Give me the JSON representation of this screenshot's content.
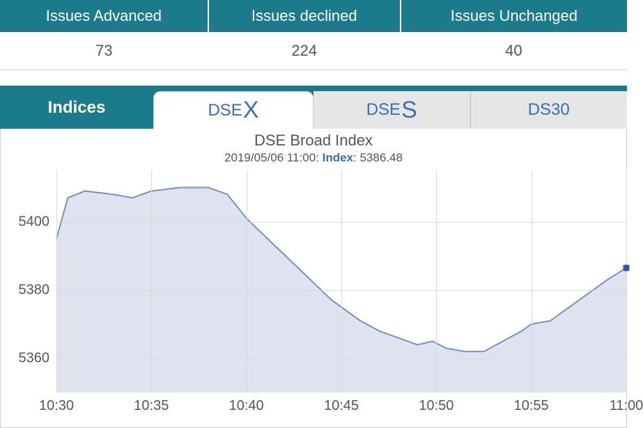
{
  "issues_table": {
    "headers": [
      "Issues Advanced",
      "Issues declined",
      "Issues Unchanged"
    ],
    "values": [
      73,
      224,
      40
    ],
    "header_bg": "#1b7b8a",
    "header_color": "#ffffff",
    "value_color": "#555555",
    "border_color": "#d6d6d6"
  },
  "tabs": {
    "bar_bg": "#1b7b8a",
    "indices_label": "Indices",
    "items": [
      {
        "prefix": "DSE",
        "suffix": "X",
        "active": true
      },
      {
        "prefix": "DSE",
        "suffix": "S",
        "active": false
      },
      {
        "prefix": "DS30",
        "suffix": "",
        "active": false
      }
    ],
    "active_color": "#3a6fb7",
    "inactive_bg": "#e6e6e6"
  },
  "chart": {
    "type": "area",
    "title": "DSE Broad Index",
    "sub_datetime": "2019/05/06 11:00:",
    "sub_index_label": "Index",
    "sub_index_value": "5386.48",
    "title_color": "#555555",
    "title_fontsize": 22,
    "sub_fontsize": 17,
    "line_color": "#7a90b8",
    "fill_color": "#d8deec",
    "fill_opacity": 0.85,
    "grid_color": "#d9d9d9",
    "dot_color": "#2a5aa0",
    "background_color": "#ffffff",
    "line_width": 2,
    "ylim": [
      5350,
      5415
    ],
    "yticks": [
      5360,
      5380,
      5400
    ],
    "xlim_minutes": [
      630,
      660
    ],
    "xticks": [
      {
        "m": 630,
        "label": "10:30"
      },
      {
        "m": 635,
        "label": "10:35"
      },
      {
        "m": 640,
        "label": "10:40"
      },
      {
        "m": 645,
        "label": "10:45"
      },
      {
        "m": 650,
        "label": "10:50"
      },
      {
        "m": 655,
        "label": "10:55"
      },
      {
        "m": 660,
        "label": "11:00"
      }
    ],
    "series": [
      {
        "m": 630.0,
        "v": 5395
      },
      {
        "m": 630.6,
        "v": 5407
      },
      {
        "m": 631.5,
        "v": 5409
      },
      {
        "m": 633.0,
        "v": 5408
      },
      {
        "m": 634.0,
        "v": 5407
      },
      {
        "m": 635.0,
        "v": 5409
      },
      {
        "m": 636.5,
        "v": 5410
      },
      {
        "m": 638.0,
        "v": 5410
      },
      {
        "m": 639.0,
        "v": 5408
      },
      {
        "m": 640.0,
        "v": 5401
      },
      {
        "m": 641.5,
        "v": 5393
      },
      {
        "m": 643.0,
        "v": 5385
      },
      {
        "m": 644.5,
        "v": 5377
      },
      {
        "m": 646.0,
        "v": 5371
      },
      {
        "m": 647.0,
        "v": 5368
      },
      {
        "m": 648.0,
        "v": 5366
      },
      {
        "m": 649.0,
        "v": 5364
      },
      {
        "m": 649.8,
        "v": 5365
      },
      {
        "m": 650.5,
        "v": 5363
      },
      {
        "m": 651.5,
        "v": 5362
      },
      {
        "m": 652.5,
        "v": 5362
      },
      {
        "m": 653.5,
        "v": 5365
      },
      {
        "m": 654.5,
        "v": 5368
      },
      {
        "m": 655.0,
        "v": 5370
      },
      {
        "m": 656.0,
        "v": 5371
      },
      {
        "m": 657.0,
        "v": 5375
      },
      {
        "m": 658.0,
        "v": 5379
      },
      {
        "m": 659.0,
        "v": 5383
      },
      {
        "m": 660.0,
        "v": 5386.48
      }
    ]
  }
}
